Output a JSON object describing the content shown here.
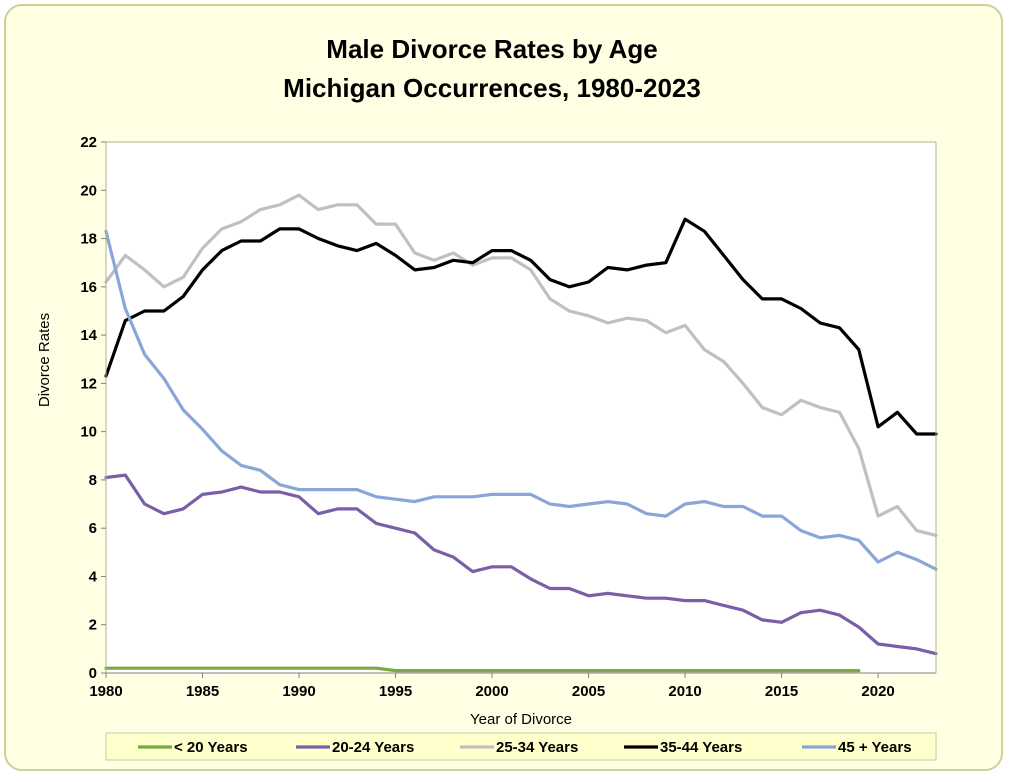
{
  "chart_data": {
    "type": "line",
    "title_line1": "Male Divorce Rates by Age",
    "title_line2": "Michigan Occurrences, 1980-2023",
    "xlabel": "Year of Divorce",
    "ylabel": "Divorce Rates",
    "xlim": [
      1980,
      2023
    ],
    "ylim": [
      0,
      22
    ],
    "x_ticks": [
      1980,
      1985,
      1990,
      1995,
      2000,
      2005,
      2010,
      2015,
      2020
    ],
    "y_ticks": [
      0,
      2,
      4,
      6,
      8,
      10,
      12,
      14,
      16,
      18,
      20,
      22
    ],
    "grid": false,
    "legend_position": "bottom",
    "series": [
      {
        "name": "< 20 Years",
        "color": "#77aa44",
        "x": [
          1980,
          1981,
          1982,
          1983,
          1984,
          1985,
          1986,
          1987,
          1988,
          1989,
          1990,
          1991,
          1992,
          1993,
          1994,
          1995,
          1996,
          1997,
          1998,
          1999,
          2000,
          2001,
          2002,
          2003,
          2004,
          2005,
          2006,
          2007,
          2008,
          2009,
          2010,
          2011,
          2012,
          2013,
          2014,
          2015,
          2016,
          2017,
          2018,
          2019
        ],
        "values": [
          0.2,
          0.2,
          0.2,
          0.2,
          0.2,
          0.2,
          0.2,
          0.2,
          0.2,
          0.2,
          0.2,
          0.2,
          0.2,
          0.2,
          0.2,
          0.1,
          0.1,
          0.1,
          0.1,
          0.1,
          0.1,
          0.1,
          0.1,
          0.1,
          0.1,
          0.1,
          0.1,
          0.1,
          0.1,
          0.1,
          0.1,
          0.1,
          0.1,
          0.1,
          0.1,
          0.1,
          0.1,
          0.1,
          0.1,
          0.1
        ]
      },
      {
        "name": "20-24 Years",
        "color": "#7a5ea8",
        "x": [
          1980,
          1981,
          1982,
          1983,
          1984,
          1985,
          1986,
          1987,
          1988,
          1989,
          1990,
          1991,
          1992,
          1993,
          1994,
          1995,
          1996,
          1997,
          1998,
          1999,
          2000,
          2001,
          2002,
          2003,
          2004,
          2005,
          2006,
          2007,
          2008,
          2009,
          2010,
          2011,
          2012,
          2013,
          2014,
          2015,
          2016,
          2017,
          2018,
          2019,
          2020,
          2021,
          2022,
          2023
        ],
        "values": [
          8.1,
          8.2,
          7.0,
          6.6,
          6.8,
          7.4,
          7.5,
          7.7,
          7.5,
          7.5,
          7.3,
          6.6,
          6.8,
          6.8,
          6.2,
          6.0,
          5.8,
          5.1,
          4.8,
          4.2,
          4.4,
          4.4,
          3.9,
          3.5,
          3.5,
          3.2,
          3.3,
          3.2,
          3.1,
          3.1,
          3.0,
          3.0,
          2.8,
          2.6,
          2.2,
          2.1,
          2.5,
          2.6,
          2.4,
          1.9,
          1.2,
          1.1,
          1.0,
          0.8
        ]
      },
      {
        "name": "25-34 Years",
        "color": "#c0c0c0",
        "x": [
          1980,
          1981,
          1982,
          1983,
          1984,
          1985,
          1986,
          1987,
          1988,
          1989,
          1990,
          1991,
          1992,
          1993,
          1994,
          1995,
          1996,
          1997,
          1998,
          1999,
          2000,
          2001,
          2002,
          2003,
          2004,
          2005,
          2006,
          2007,
          2008,
          2009,
          2010,
          2011,
          2012,
          2013,
          2014,
          2015,
          2016,
          2017,
          2018,
          2019,
          2020,
          2021,
          2022,
          2023
        ],
        "values": [
          16.2,
          17.3,
          16.7,
          16.0,
          16.4,
          17.6,
          18.4,
          18.7,
          19.2,
          19.4,
          19.8,
          19.2,
          19.4,
          19.4,
          18.6,
          18.6,
          17.4,
          17.1,
          17.4,
          16.9,
          17.2,
          17.2,
          16.7,
          15.5,
          15.0,
          14.8,
          14.5,
          14.7,
          14.6,
          14.1,
          14.4,
          13.4,
          12.9,
          12.0,
          11.0,
          10.7,
          11.3,
          11.0,
          10.8,
          9.3,
          6.5,
          6.9,
          5.9,
          5.7
        ]
      },
      {
        "name": "35-44 Years",
        "color": "#000000",
        "x": [
          1980,
          1981,
          1982,
          1983,
          1984,
          1985,
          1986,
          1987,
          1988,
          1989,
          1990,
          1991,
          1992,
          1993,
          1994,
          1995,
          1996,
          1997,
          1998,
          1999,
          2000,
          2001,
          2002,
          2003,
          2004,
          2005,
          2006,
          2007,
          2008,
          2009,
          2010,
          2011,
          2012,
          2013,
          2014,
          2015,
          2016,
          2017,
          2018,
          2019,
          2020,
          2021,
          2022,
          2023
        ],
        "values": [
          12.3,
          14.6,
          15.0,
          15.0,
          15.6,
          16.7,
          17.5,
          17.9,
          17.9,
          18.4,
          18.4,
          18.0,
          17.7,
          17.5,
          17.8,
          17.3,
          16.7,
          16.8,
          17.1,
          17.0,
          17.5,
          17.5,
          17.1,
          16.3,
          16.0,
          16.2,
          16.8,
          16.7,
          16.9,
          17.0,
          18.8,
          18.3,
          17.3,
          16.3,
          15.5,
          15.5,
          15.1,
          14.5,
          14.3,
          13.4,
          10.2,
          10.8,
          9.9,
          9.9
        ]
      },
      {
        "name": "45 + Years",
        "color": "#8aa6d8",
        "x": [
          1980,
          1981,
          1982,
          1983,
          1984,
          1985,
          1986,
          1987,
          1988,
          1989,
          1990,
          1991,
          1992,
          1993,
          1994,
          1995,
          1996,
          1997,
          1998,
          1999,
          2000,
          2001,
          2002,
          2003,
          2004,
          2005,
          2006,
          2007,
          2008,
          2009,
          2010,
          2011,
          2012,
          2013,
          2014,
          2015,
          2016,
          2017,
          2018,
          2019,
          2020,
          2021,
          2022,
          2023
        ],
        "values": [
          18.3,
          15.1,
          13.2,
          12.2,
          10.9,
          10.1,
          9.2,
          8.6,
          8.4,
          7.8,
          7.6,
          7.6,
          7.6,
          7.6,
          7.3,
          7.2,
          7.1,
          7.3,
          7.3,
          7.3,
          7.4,
          7.4,
          7.4,
          7.0,
          6.9,
          7.0,
          7.1,
          7.0,
          6.6,
          6.5,
          7.0,
          7.1,
          6.9,
          6.9,
          6.5,
          6.5,
          5.9,
          5.6,
          5.7,
          5.5,
          4.6,
          5.0,
          4.7,
          4.3
        ]
      }
    ]
  }
}
